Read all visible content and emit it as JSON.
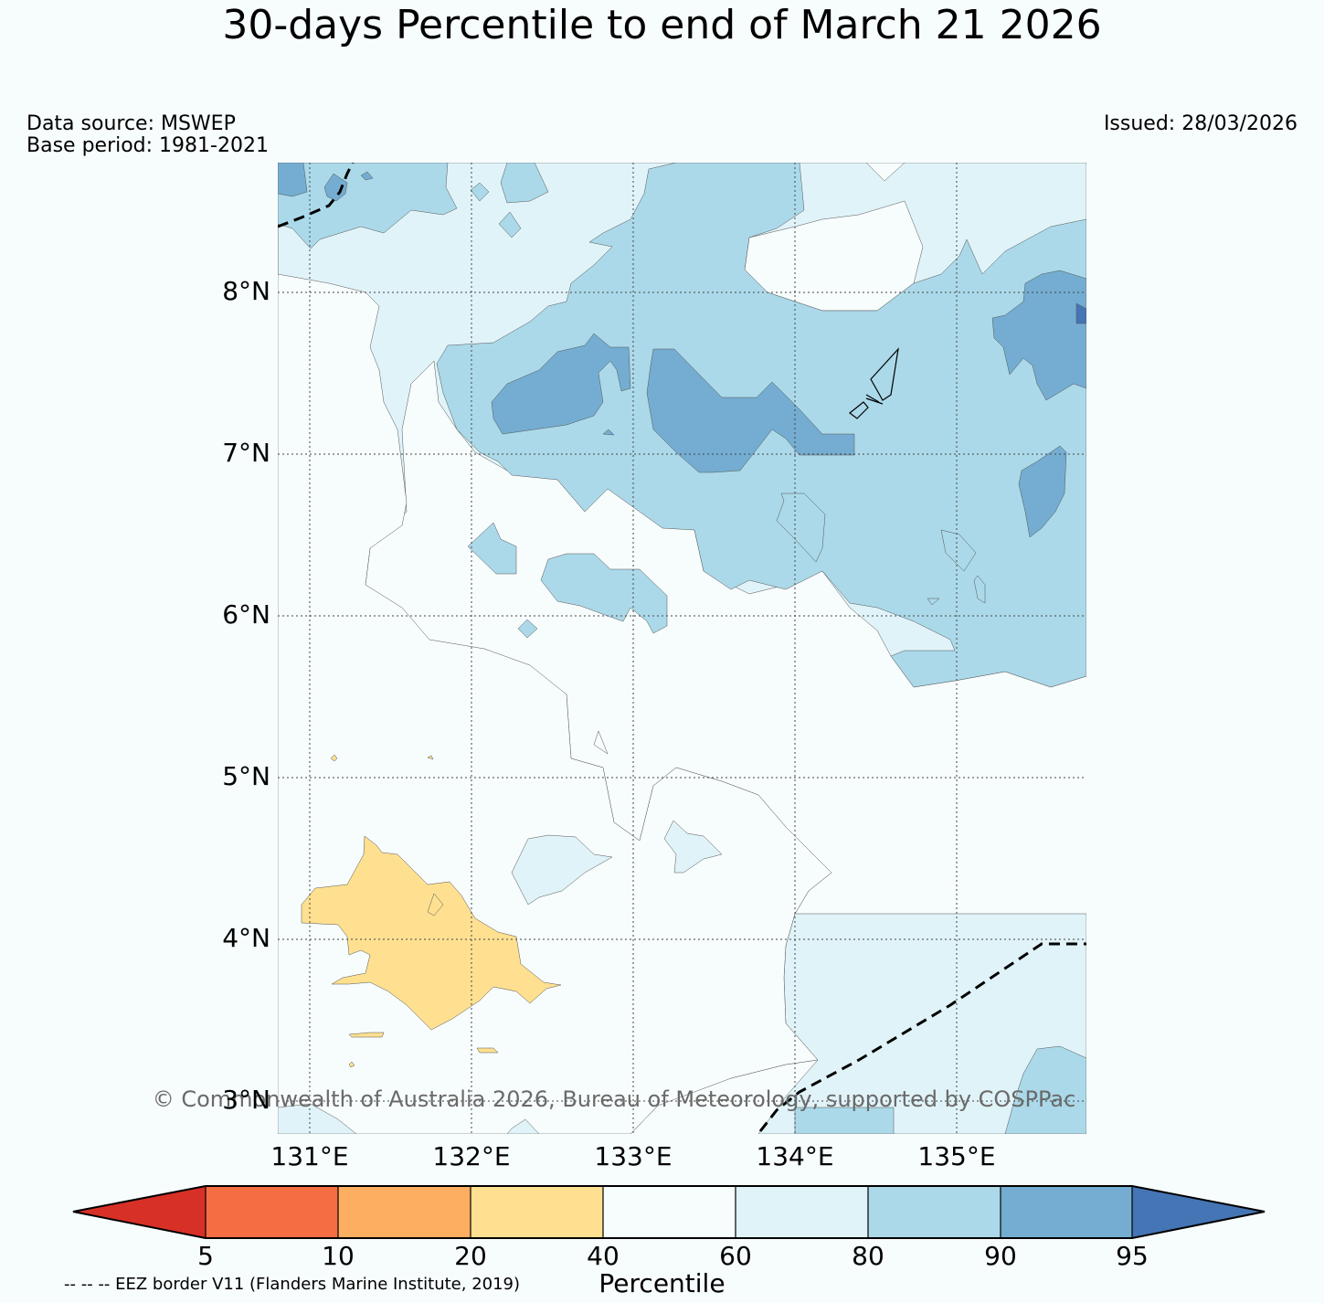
{
  "title": "30-days Percentile to end of March 21 2026",
  "data_source": "Data source: MSWEP",
  "base_period": "Base period: 1981-2021",
  "issued": "Issued: 28/03/2026",
  "copyright": "© Commonwealth of Australia 2026, Bureau of Meteorology, supported by COSPPac",
  "lat_labels": [
    "8°N",
    "7°N",
    "6°N",
    "5°N",
    "4°N",
    "3°N"
  ],
  "lon_labels": [
    "131°E",
    "132°E",
    "133°E",
    "134°E",
    "135°E"
  ],
  "colorbar": {
    "label": "Percentile",
    "ticks": [
      "5",
      "10",
      "20",
      "40",
      "60",
      "80",
      "90",
      "95"
    ],
    "colors": {
      "below5": "#d73027",
      "p5_10": "#f46d43",
      "p10_20": "#fdae61",
      "p20_40": "#fee090",
      "p40_60": "#f7fcfd",
      "p60_80": "#e0f3f8",
      "p80_90": "#abd9e9",
      "p90_95": "#74add1",
      "above95": "#4575b4"
    }
  },
  "eez_note": "-- -- -- EEZ border V11 (Flanders Marine Institute, 2019)"
}
